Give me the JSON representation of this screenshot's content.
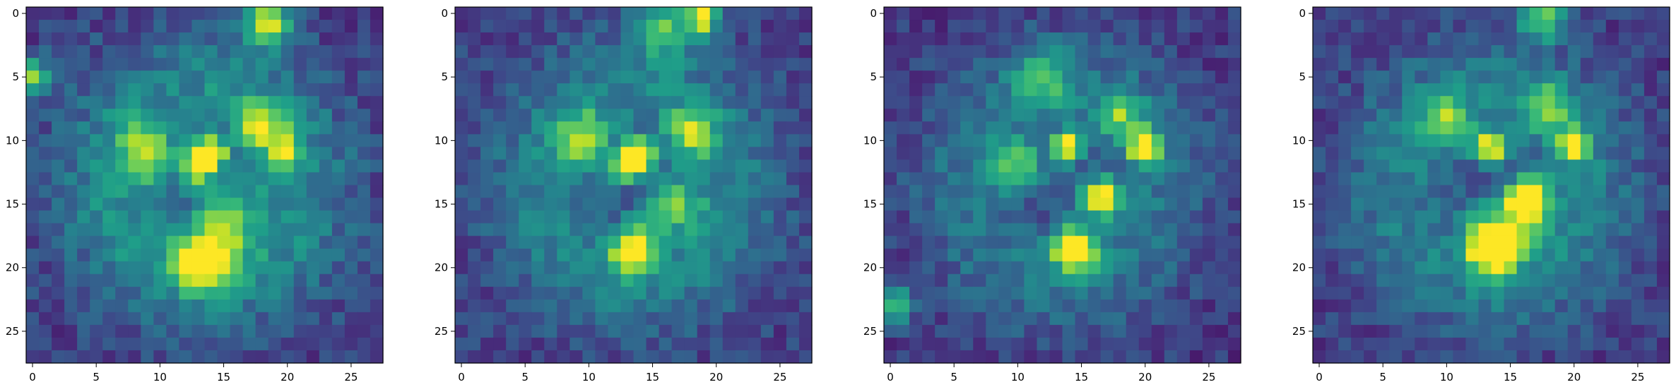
{
  "colormap": "viridis",
  "frame_color": "#000000",
  "chart_data": [
    {
      "type": "heatmap",
      "title": "",
      "xlabel": "",
      "ylabel": "",
      "grid": false,
      "xlim": [
        -0.5,
        27.5
      ],
      "ylim": [
        27.5,
        -0.5
      ],
      "xticks": [
        "0",
        "5",
        "10",
        "15",
        "20",
        "25"
      ],
      "yticks": [
        "0",
        "5",
        "10",
        "15",
        "20",
        "25"
      ],
      "size": [
        28,
        28
      ],
      "blobs": [
        {
          "x": 14,
          "y": 11,
          "v": 1.0,
          "s": 0.7
        },
        {
          "x": 13,
          "y": 12,
          "v": 0.85,
          "s": 0.9
        },
        {
          "x": 13.5,
          "y": 19.5,
          "v": 0.8,
          "s": 1.6
        },
        {
          "x": 9,
          "y": 11,
          "v": 0.55,
          "s": 1.5
        },
        {
          "x": 18,
          "y": 9,
          "v": 0.5,
          "s": 1.5
        },
        {
          "x": 20,
          "y": 11,
          "v": 0.6,
          "s": 0.8
        },
        {
          "x": 15,
          "y": 16,
          "v": 0.45,
          "s": 2.0
        },
        {
          "x": 18.5,
          "y": 0.8,
          "v": 0.75,
          "s": 1.3
        },
        {
          "x": 0,
          "y": 5,
          "v": 0.65,
          "s": 1.0
        }
      ],
      "base": 0.08,
      "ring": 0.28,
      "noise": 0.22,
      "seed": 11
    },
    {
      "type": "heatmap",
      "title": "",
      "xlabel": "",
      "ylabel": "",
      "grid": false,
      "xlim": [
        -0.5,
        27.5
      ],
      "ylim": [
        27.5,
        -0.5
      ],
      "xticks": [
        "0",
        "5",
        "10",
        "15",
        "20",
        "25"
      ],
      "yticks": [
        "0",
        "5",
        "10",
        "15",
        "20",
        "25"
      ],
      "size": [
        28,
        28
      ],
      "blobs": [
        {
          "x": 14,
          "y": 11,
          "v": 1.0,
          "s": 0.7
        },
        {
          "x": 13,
          "y": 12,
          "v": 0.9,
          "s": 0.9
        },
        {
          "x": 13.5,
          "y": 18.5,
          "v": 0.75,
          "s": 1.3
        },
        {
          "x": 9.5,
          "y": 10,
          "v": 0.55,
          "s": 1.5
        },
        {
          "x": 18,
          "y": 9.5,
          "v": 0.5,
          "s": 1.4
        },
        {
          "x": 16.5,
          "y": 15,
          "v": 0.45,
          "s": 1.6
        },
        {
          "x": 19,
          "y": 0.3,
          "v": 0.85,
          "s": 0.8
        },
        {
          "x": 16,
          "y": 1,
          "v": 0.45,
          "s": 1.8
        }
      ],
      "base": 0.09,
      "ring": 0.25,
      "noise": 0.2,
      "seed": 23
    },
    {
      "type": "heatmap",
      "title": "",
      "xlabel": "",
      "ylabel": "",
      "grid": false,
      "xlim": [
        -0.5,
        27.5
      ],
      "ylim": [
        27.5,
        -0.5
      ],
      "xticks": [
        "0",
        "5",
        "10",
        "15",
        "20",
        "25"
      ],
      "yticks": [
        "0",
        "5",
        "10",
        "15",
        "20",
        "25"
      ],
      "size": [
        28,
        28
      ],
      "blobs": [
        {
          "x": 20,
          "y": 10.5,
          "v": 1.0,
          "s": 0.8
        },
        {
          "x": 14,
          "y": 10.5,
          "v": 0.8,
          "s": 0.9
        },
        {
          "x": 16.5,
          "y": 14.5,
          "v": 0.95,
          "s": 1.0
        },
        {
          "x": 14.5,
          "y": 18.5,
          "v": 0.85,
          "s": 1.3
        },
        {
          "x": 10,
          "y": 12,
          "v": 0.45,
          "s": 1.5
        },
        {
          "x": 18,
          "y": 8,
          "v": 0.45,
          "s": 1.3
        },
        {
          "x": 0,
          "y": 23,
          "v": 0.55,
          "s": 1.1
        },
        {
          "x": 12,
          "y": 5,
          "v": 0.35,
          "s": 1.6
        }
      ],
      "base": 0.07,
      "ring": 0.22,
      "noise": 0.2,
      "seed": 37
    },
    {
      "type": "heatmap",
      "title": "",
      "xlabel": "",
      "ylabel": "",
      "grid": false,
      "xlim": [
        -0.5,
        27.5
      ],
      "ylim": [
        27.5,
        -0.5
      ],
      "xticks": [
        "0",
        "5",
        "10",
        "15",
        "20",
        "25"
      ],
      "yticks": [
        "0",
        "5",
        "10",
        "15",
        "20",
        "25"
      ],
      "size": [
        28,
        28
      ],
      "blobs": [
        {
          "x": 20,
          "y": 10.5,
          "v": 0.95,
          "s": 0.8
        },
        {
          "x": 13.5,
          "y": 10.5,
          "v": 0.8,
          "s": 0.9
        },
        {
          "x": 16.5,
          "y": 14.5,
          "v": 1.0,
          "s": 1.0
        },
        {
          "x": 13.5,
          "y": 18.5,
          "v": 0.9,
          "s": 1.3
        },
        {
          "x": 10,
          "y": 8.5,
          "v": 0.5,
          "s": 1.4
        },
        {
          "x": 18,
          "y": 7.5,
          "v": 0.45,
          "s": 1.3
        },
        {
          "x": 17.5,
          "y": 0.3,
          "v": 0.6,
          "s": 1.2
        },
        {
          "x": 15,
          "y": 16.5,
          "v": 0.5,
          "s": 2.0
        }
      ],
      "base": 0.08,
      "ring": 0.25,
      "noise": 0.2,
      "seed": 51
    }
  ]
}
